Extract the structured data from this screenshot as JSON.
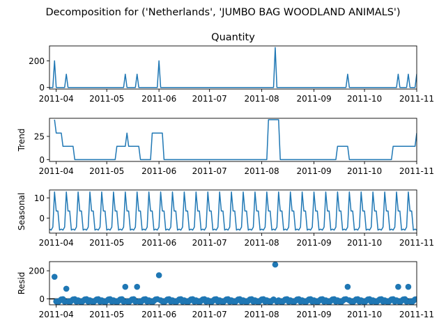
{
  "figure": {
    "suptitle": "Decomposition for ('Netherlands', 'JUMBO BAG WOODLAND ANIMALS')"
  },
  "chart_data": [
    {
      "type": "line",
      "ylabel": "",
      "title": "Quantity",
      "x_range": [
        "2011-03-28",
        "2011-11-01"
      ],
      "ylim": [
        -12,
        312
      ],
      "yticks": [
        0,
        200
      ],
      "xticks": [
        "2011-04",
        "2011-05",
        "2011-06",
        "2011-07",
        "2011-08",
        "2011-09",
        "2011-10",
        "2011-11"
      ],
      "color": "#1f77b4",
      "baseline": 0,
      "spikes": [
        {
          "date": "2011-03-31",
          "value": 200
        },
        {
          "date": "2011-04-07",
          "value": 100
        },
        {
          "date": "2011-05-12",
          "value": 100
        },
        {
          "date": "2011-05-19",
          "value": 100
        },
        {
          "date": "2011-06-01",
          "value": 200
        },
        {
          "date": "2011-08-09",
          "value": 300
        },
        {
          "date": "2011-09-21",
          "value": 100
        },
        {
          "date": "2011-10-21",
          "value": 100
        },
        {
          "date": "2011-10-27",
          "value": 100
        },
        {
          "date": "2011-11-01",
          "value": 100
        }
      ]
    },
    {
      "type": "line",
      "ylabel": "Trend",
      "title": "",
      "x_range": [
        "2011-03-28",
        "2011-11-01"
      ],
      "ylim": [
        -2,
        44.5
      ],
      "yticks": [
        0,
        25
      ],
      "xticks": [
        "2011-04",
        "2011-05",
        "2011-06",
        "2011-07",
        "2011-08",
        "2011-09",
        "2011-10",
        "2011-11"
      ],
      "color": "#1f77b4",
      "points": [
        [
          "2011-03-31",
          43
        ],
        [
          "2011-04-01",
          28.6
        ],
        [
          "2011-04-04",
          28.6
        ],
        [
          "2011-04-05",
          14.3
        ],
        [
          "2011-04-11",
          14.3
        ],
        [
          "2011-04-12",
          0
        ],
        [
          "2011-05-06",
          0
        ],
        [
          "2011-05-07",
          14.3
        ],
        [
          "2011-05-12",
          14.3
        ],
        [
          "2011-05-13",
          28.6
        ],
        [
          "2011-05-14",
          14.3
        ],
        [
          "2011-05-20",
          14.3
        ],
        [
          "2011-05-21",
          0
        ],
        [
          "2011-05-27",
          0
        ],
        [
          "2011-05-28",
          28.6
        ],
        [
          "2011-06-03",
          28.6
        ],
        [
          "2011-06-04",
          0
        ],
        [
          "2011-08-04",
          0
        ],
        [
          "2011-08-05",
          43
        ],
        [
          "2011-08-11",
          43
        ],
        [
          "2011-08-12",
          0
        ],
        [
          "2011-09-14",
          0
        ],
        [
          "2011-09-15",
          14.3
        ],
        [
          "2011-09-21",
          14.3
        ],
        [
          "2011-09-22",
          0
        ],
        [
          "2011-10-17",
          0
        ],
        [
          "2011-10-18",
          14.3
        ],
        [
          "2011-10-31",
          14.3
        ],
        [
          "2011-11-01",
          28.6
        ]
      ]
    },
    {
      "type": "line",
      "ylabel": "Seasonal",
      "title": "",
      "x_range": [
        "2011-03-28",
        "2011-11-01"
      ],
      "ylim": [
        -7.5,
        14
      ],
      "yticks": [
        0,
        10
      ],
      "xticks": [
        "2011-04",
        "2011-05",
        "2011-06",
        "2011-07",
        "2011-08",
        "2011-09",
        "2011-10",
        "2011-11"
      ],
      "color": "#1f77b4",
      "period_days": 7,
      "first_date": "2011-03-28",
      "last_date": "2011-11-01",
      "weekly_pattern": [
        -5.5,
        -6,
        -4.5,
        13,
        3.5,
        3.5,
        -6
      ]
    },
    {
      "type": "scatter",
      "ylabel": "Resid",
      "title": "",
      "x_range": [
        "2011-03-28",
        "2011-11-01"
      ],
      "ylim": [
        -42,
        265
      ],
      "yticks": [
        0,
        200
      ],
      "xticks": [
        "2011-04",
        "2011-05",
        "2011-06",
        "2011-07",
        "2011-08",
        "2011-09",
        "2011-10",
        "2011-11"
      ],
      "color": "#1f77b4",
      "zero_line": true,
      "outliers": [
        {
          "date": "2011-03-31",
          "value": 157
        },
        {
          "date": "2011-04-07",
          "value": 72
        },
        {
          "date": "2011-05-12",
          "value": 86
        },
        {
          "date": "2011-05-19",
          "value": 86
        },
        {
          "date": "2011-06-01",
          "value": 168
        },
        {
          "date": "2011-08-09",
          "value": 244
        },
        {
          "date": "2011-09-21",
          "value": 86
        },
        {
          "date": "2011-10-21",
          "value": 86
        },
        {
          "date": "2011-10-27",
          "value": 86
        }
      ],
      "residual_weekly_pattern": [
        -10,
        -18,
        -26,
        -14,
        -4,
        -2,
        -20
      ]
    }
  ]
}
